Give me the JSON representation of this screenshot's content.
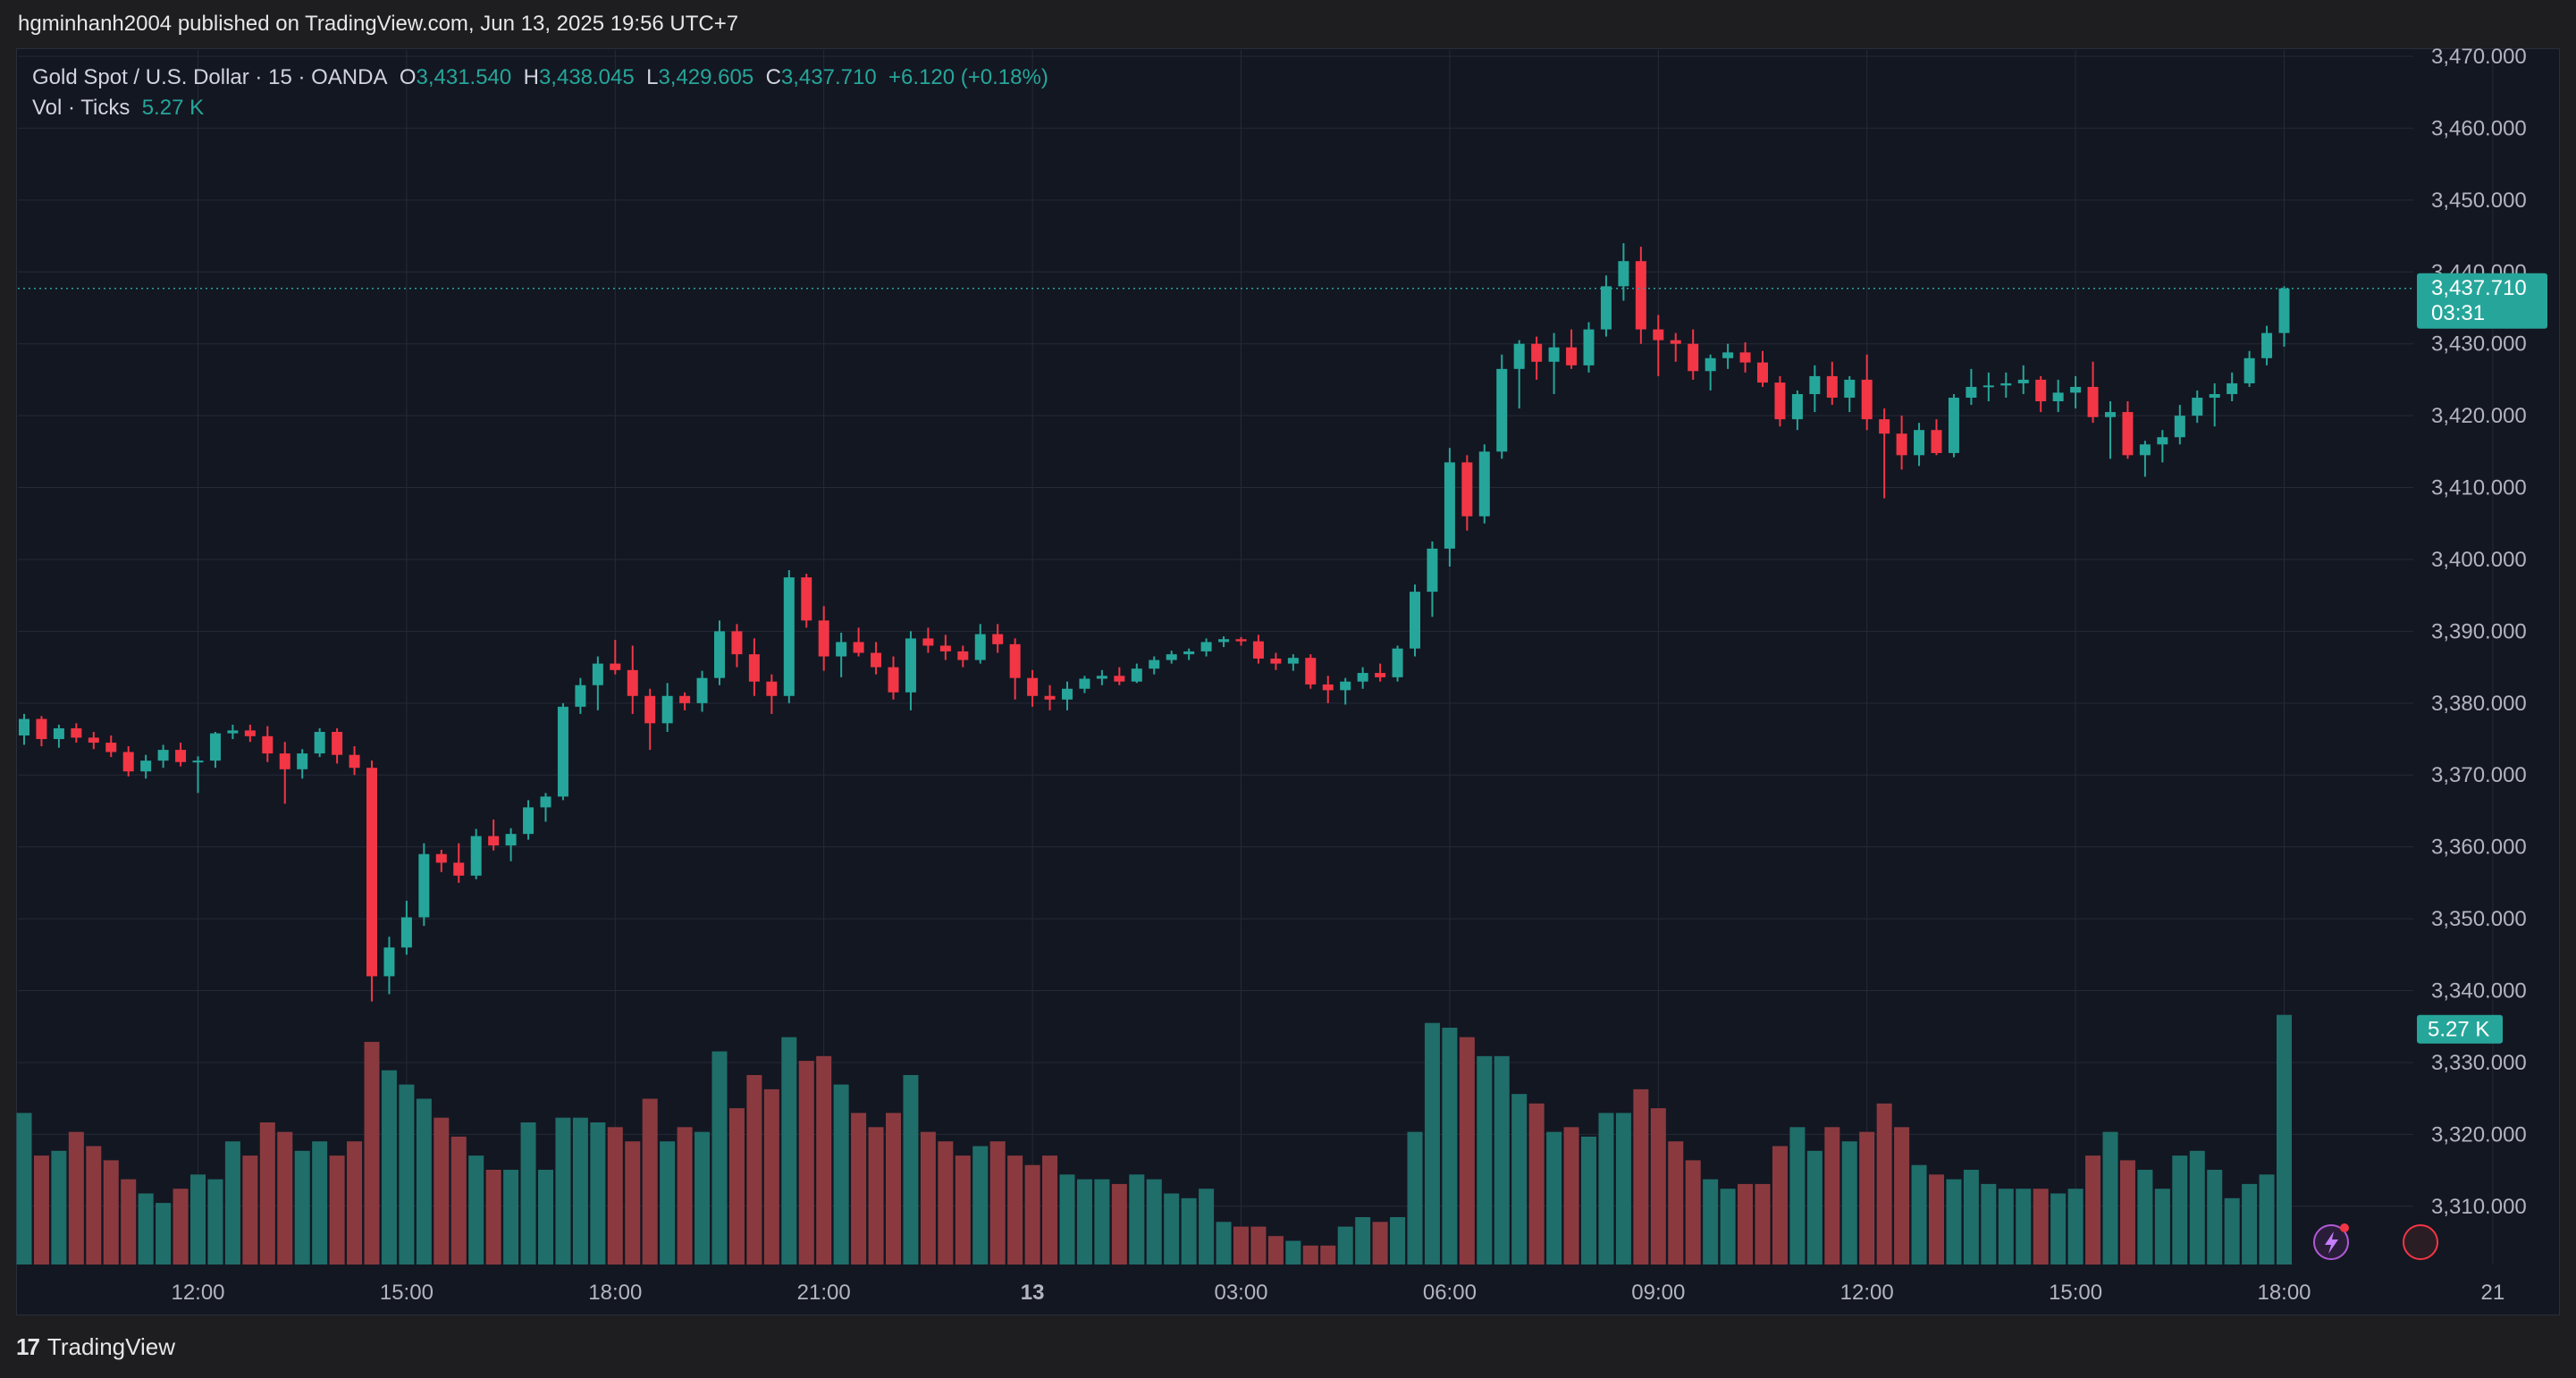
{
  "header": {
    "published": "hgminhanh2004 published on TradingView.com, Jun 13, 2025 19:56 UTC+7"
  },
  "legend": {
    "symbol": "Gold Spot / U.S. Dollar · 15 · OANDA",
    "o_label": "O",
    "o_value": "3,431.540",
    "h_label": "H",
    "h_value": "3,438.045",
    "l_label": "L",
    "l_value": "3,429.605",
    "c_label": "C",
    "c_value": "3,437.710",
    "change": "+6.120 (+0.18%)",
    "vol_label": "Vol · Ticks",
    "vol_value": "5.27 K"
  },
  "last_price": {
    "value": "3,437.710",
    "countdown": "03:31"
  },
  "last_volume": {
    "value": "5.27 K"
  },
  "footer": {
    "brand": "TradingView"
  },
  "colors": {
    "up": "#26a69a",
    "down": "#f23645",
    "up_vol": "#1f6e6a",
    "down_vol": "#8a3a3f",
    "background": "#131722",
    "grid": "#252a37"
  },
  "chart_data": {
    "type": "candlestick",
    "symbol": "XAUUSD",
    "interval_minutes": 15,
    "ylim": [
      3305,
      3470
    ],
    "y_ticks": [
      "3,470.000",
      "3,460.000",
      "3,450.000",
      "3,440.000",
      "3,430.000",
      "3,420.000",
      "3,410.000",
      "3,400.000",
      "3,390.000",
      "3,380.000",
      "3,370.000",
      "3,360.000",
      "3,350.000",
      "3,340.000",
      "3,330.000",
      "3,320.000",
      "3,310.000"
    ],
    "x_ticks": [
      {
        "label": "12:00",
        "candle": 10
      },
      {
        "label": "15:00",
        "candle": 22
      },
      {
        "label": "18:00",
        "candle": 34
      },
      {
        "label": "21:00",
        "candle": 46
      },
      {
        "label": "13",
        "candle": 58,
        "bold": true
      },
      {
        "label": "03:00",
        "candle": 70
      },
      {
        "label": "06:00",
        "candle": 82
      },
      {
        "label": "09:00",
        "candle": 94
      },
      {
        "label": "12:00",
        "candle": 106
      },
      {
        "label": "15:00",
        "candle": 118
      },
      {
        "label": "18:00",
        "candle": 130
      },
      {
        "label": "21",
        "candle": 142
      }
    ],
    "ohlcv": [
      [
        3375.5,
        3378.5,
        3374.2,
        3377.8,
        3.2
      ],
      [
        3377.8,
        3378.2,
        3374.0,
        3375.0,
        2.3
      ],
      [
        3375.0,
        3377.0,
        3373.8,
        3376.5,
        2.4
      ],
      [
        3376.5,
        3377.2,
        3374.5,
        3375.2,
        2.8
      ],
      [
        3375.2,
        3376.0,
        3373.6,
        3374.5,
        2.5
      ],
      [
        3374.5,
        3375.5,
        3372.5,
        3373.2,
        2.2
      ],
      [
        3373.2,
        3374.0,
        3369.8,
        3370.5,
        1.8
      ],
      [
        3370.5,
        3372.8,
        3369.5,
        3372.0,
        1.5
      ],
      [
        3372.0,
        3374.2,
        3371.0,
        3373.5,
        1.3
      ],
      [
        3373.5,
        3374.5,
        3371.2,
        3371.8,
        1.6
      ],
      [
        3371.8,
        3372.6,
        3367.5,
        3372.0,
        1.9
      ],
      [
        3372.0,
        3376.0,
        3371.0,
        3375.8,
        1.8
      ],
      [
        3375.8,
        3377.0,
        3375.0,
        3376.2,
        2.6
      ],
      [
        3376.2,
        3377.0,
        3374.6,
        3375.4,
        2.3
      ],
      [
        3375.4,
        3376.8,
        3371.8,
        3373.0,
        3.0
      ],
      [
        3373.0,
        3374.6,
        3366.0,
        3370.8,
        2.8
      ],
      [
        3370.8,
        3373.6,
        3369.5,
        3373.0,
        2.4
      ],
      [
        3373.0,
        3376.5,
        3372.5,
        3376.0,
        2.6
      ],
      [
        3376.0,
        3376.5,
        3371.6,
        3372.8,
        2.3
      ],
      [
        3372.8,
        3374.0,
        3370.0,
        3371.0,
        2.6
      ],
      [
        3371.0,
        3372.0,
        3338.5,
        3342.0,
        4.7
      ],
      [
        3342.0,
        3347.5,
        3339.5,
        3346.0,
        4.1
      ],
      [
        3346.0,
        3352.5,
        3345.0,
        3350.2,
        3.8
      ],
      [
        3350.2,
        3360.5,
        3349.0,
        3359.0,
        3.5
      ],
      [
        3359.0,
        3359.6,
        3356.5,
        3357.8,
        3.1
      ],
      [
        3357.8,
        3360.5,
        3355.0,
        3356.0,
        2.7
      ],
      [
        3356.0,
        3362.5,
        3355.5,
        3361.5,
        2.3
      ],
      [
        3361.5,
        3363.8,
        3359.5,
        3360.2,
        2.0
      ],
      [
        3360.2,
        3362.6,
        3358.0,
        3361.8,
        2.0
      ],
      [
        3361.8,
        3366.5,
        3361.0,
        3365.5,
        3.0
      ],
      [
        3365.5,
        3367.5,
        3363.5,
        3367.0,
        2.0
      ],
      [
        3367.0,
        3380.0,
        3366.5,
        3379.5,
        3.1
      ],
      [
        3379.5,
        3383.5,
        3378.5,
        3382.5,
        3.1
      ],
      [
        3382.5,
        3386.5,
        3379.0,
        3385.5,
        3.0
      ],
      [
        3385.5,
        3388.8,
        3384.0,
        3384.6,
        2.9
      ],
      [
        3384.6,
        3388.0,
        3378.5,
        3381.0,
        2.6
      ],
      [
        3381.0,
        3382.0,
        3373.5,
        3377.2,
        3.5
      ],
      [
        3377.2,
        3382.8,
        3376.0,
        3381.0,
        2.6
      ],
      [
        3381.0,
        3381.5,
        3379.0,
        3380.0,
        2.9
      ],
      [
        3380.0,
        3384.5,
        3378.8,
        3383.5,
        2.8
      ],
      [
        3383.5,
        3391.5,
        3382.5,
        3390.0,
        4.5
      ],
      [
        3390.0,
        3391.0,
        3385.0,
        3386.8,
        3.3
      ],
      [
        3386.8,
        3389.0,
        3381.0,
        3383.0,
        4.0
      ],
      [
        3383.0,
        3384.0,
        3378.5,
        3381.0,
        3.7
      ],
      [
        3381.0,
        3398.5,
        3380.0,
        3397.5,
        4.8
      ],
      [
        3397.5,
        3398.0,
        3390.5,
        3391.5,
        4.3
      ],
      [
        3391.5,
        3393.5,
        3384.5,
        3386.5,
        4.4
      ],
      [
        3386.5,
        3389.8,
        3383.6,
        3388.5,
        3.8
      ],
      [
        3388.5,
        3390.5,
        3386.5,
        3387.0,
        3.2
      ],
      [
        3387.0,
        3388.5,
        3384.0,
        3385.0,
        2.9
      ],
      [
        3385.0,
        3386.5,
        3380.5,
        3381.5,
        3.2
      ],
      [
        3381.5,
        3390.0,
        3379.0,
        3389.0,
        4.0
      ],
      [
        3389.0,
        3390.5,
        3387.0,
        3388.0,
        2.8
      ],
      [
        3388.0,
        3389.5,
        3386.0,
        3387.2,
        2.6
      ],
      [
        3387.2,
        3388.0,
        3385.0,
        3386.0,
        2.3
      ],
      [
        3386.0,
        3391.0,
        3385.5,
        3389.6,
        2.5
      ],
      [
        3389.6,
        3391.0,
        3387.0,
        3388.2,
        2.6
      ],
      [
        3388.2,
        3389.0,
        3380.5,
        3383.5,
        2.3
      ],
      [
        3383.5,
        3384.6,
        3379.5,
        3381.0,
        2.1
      ],
      [
        3381.0,
        3382.5,
        3379.0,
        3380.5,
        2.3
      ],
      [
        3380.5,
        3383.0,
        3379.0,
        3382.0,
        1.9
      ],
      [
        3382.0,
        3383.8,
        3381.4,
        3383.4,
        1.8
      ],
      [
        3383.4,
        3384.6,
        3382.5,
        3383.8,
        1.8
      ],
      [
        3383.8,
        3385.0,
        3382.5,
        3383.0,
        1.7
      ],
      [
        3383.0,
        3385.5,
        3382.8,
        3384.8,
        1.9
      ],
      [
        3384.8,
        3386.5,
        3384.0,
        3386.0,
        1.8
      ],
      [
        3386.0,
        3387.3,
        3385.5,
        3386.8,
        1.5
      ],
      [
        3386.8,
        3387.6,
        3386.0,
        3387.2,
        1.4
      ],
      [
        3387.2,
        3389.0,
        3386.5,
        3388.5,
        1.6
      ],
      [
        3388.5,
        3389.3,
        3387.8,
        3388.9,
        0.9
      ],
      [
        3388.9,
        3389.2,
        3388.0,
        3388.6,
        0.8
      ],
      [
        3388.6,
        3389.5,
        3385.5,
        3386.2,
        0.8
      ],
      [
        3386.2,
        3387.0,
        3384.6,
        3385.5,
        0.6
      ],
      [
        3385.5,
        3386.8,
        3384.5,
        3386.3,
        0.5
      ],
      [
        3386.3,
        3386.8,
        3382.0,
        3382.6,
        0.4
      ],
      [
        3382.6,
        3383.8,
        3380.0,
        3381.8,
        0.4
      ],
      [
        3381.8,
        3383.5,
        3379.8,
        3383.0,
        0.8
      ],
      [
        3383.0,
        3385.0,
        3382.0,
        3384.2,
        1.0
      ],
      [
        3384.2,
        3385.5,
        3383.0,
        3383.6,
        0.9
      ],
      [
        3383.6,
        3388.0,
        3383.0,
        3387.6,
        1.0
      ],
      [
        3387.6,
        3396.5,
        3386.5,
        3395.5,
        2.8
      ],
      [
        3395.5,
        3402.5,
        3392.0,
        3401.5,
        5.1
      ],
      [
        3401.5,
        3415.5,
        3399.0,
        3413.5,
        5.0
      ],
      [
        3413.5,
        3414.5,
        3404.0,
        3406.0,
        4.8
      ],
      [
        3406.0,
        3416.0,
        3405.0,
        3415.0,
        4.4
      ],
      [
        3415.0,
        3428.5,
        3414.0,
        3426.5,
        4.4
      ],
      [
        3426.5,
        3430.5,
        3421.0,
        3430.0,
        3.6
      ],
      [
        3430.0,
        3431.0,
        3425.0,
        3427.5,
        3.4
      ],
      [
        3427.5,
        3431.5,
        3423.0,
        3429.5,
        2.8
      ],
      [
        3429.5,
        3432.0,
        3426.5,
        3427.0,
        2.9
      ],
      [
        3427.0,
        3433.0,
        3426.0,
        3432.0,
        2.7
      ],
      [
        3432.0,
        3439.5,
        3431.0,
        3438.0,
        3.2
      ],
      [
        3438.0,
        3444.0,
        3436.0,
        3441.5,
        3.2
      ],
      [
        3441.5,
        3443.5,
        3430.0,
        3432.0,
        3.7
      ],
      [
        3432.0,
        3434.0,
        3425.5,
        3430.5,
        3.3
      ],
      [
        3430.5,
        3431.5,
        3427.5,
        3430.0,
        2.6
      ],
      [
        3430.0,
        3432.0,
        3425.0,
        3426.2,
        2.2
      ],
      [
        3426.2,
        3428.5,
        3423.5,
        3428.0,
        1.8
      ],
      [
        3428.0,
        3430.0,
        3426.5,
        3428.8,
        1.6
      ],
      [
        3428.8,
        3430.2,
        3426.0,
        3427.4,
        1.7
      ],
      [
        3427.4,
        3429.0,
        3424.0,
        3424.6,
        1.7
      ],
      [
        3424.6,
        3425.5,
        3418.5,
        3419.5,
        2.5
      ],
      [
        3419.5,
        3423.5,
        3418.0,
        3423.0,
        2.9
      ],
      [
        3423.0,
        3427.0,
        3420.5,
        3425.5,
        2.4
      ],
      [
        3425.5,
        3427.5,
        3421.5,
        3422.5,
        2.9
      ],
      [
        3422.5,
        3425.5,
        3420.5,
        3425.0,
        2.6
      ],
      [
        3425.0,
        3428.5,
        3418.0,
        3419.5,
        2.8
      ],
      [
        3419.5,
        3421.0,
        3408.5,
        3417.5,
        3.4
      ],
      [
        3417.5,
        3420.0,
        3412.5,
        3414.5,
        2.9
      ],
      [
        3414.5,
        3419.0,
        3413.0,
        3418.0,
        2.1
      ],
      [
        3418.0,
        3419.5,
        3414.5,
        3414.8,
        1.9
      ],
      [
        3414.8,
        3423.0,
        3414.2,
        3422.5,
        1.8
      ],
      [
        3422.5,
        3426.5,
        3421.5,
        3424.0,
        2.0
      ],
      [
        3424.0,
        3426.0,
        3422.0,
        3424.2,
        1.7
      ],
      [
        3424.2,
        3426.0,
        3422.5,
        3424.5,
        1.6
      ],
      [
        3424.5,
        3427.0,
        3423.0,
        3425.0,
        1.6
      ],
      [
        3425.0,
        3425.5,
        3420.5,
        3422.0,
        1.6
      ],
      [
        3422.0,
        3425.0,
        3420.5,
        3423.2,
        1.5
      ],
      [
        3423.2,
        3425.5,
        3421.0,
        3424.0,
        1.6
      ],
      [
        3424.0,
        3427.5,
        3419.0,
        3419.8,
        2.3
      ],
      [
        3419.8,
        3422.0,
        3414.0,
        3420.5,
        2.8
      ],
      [
        3420.5,
        3422.0,
        3414.0,
        3414.5,
        2.2
      ],
      [
        3414.5,
        3416.5,
        3411.5,
        3416.0,
        2.0
      ],
      [
        3416.0,
        3418.0,
        3413.5,
        3417.0,
        1.6
      ],
      [
        3417.0,
        3421.5,
        3416.0,
        3420.0,
        2.3
      ],
      [
        3420.0,
        3423.5,
        3419.0,
        3422.5,
        2.4
      ],
      [
        3422.5,
        3424.5,
        3418.5,
        3423.0,
        2.0
      ],
      [
        3423.0,
        3426.0,
        3422.0,
        3424.5,
        1.4
      ],
      [
        3424.5,
        3429.0,
        3424.0,
        3428.0,
        1.7
      ],
      [
        3428.0,
        3432.5,
        3427.0,
        3431.5,
        1.9
      ],
      [
        3431.5,
        3438.0,
        3429.6,
        3437.7,
        5.27
      ]
    ]
  }
}
